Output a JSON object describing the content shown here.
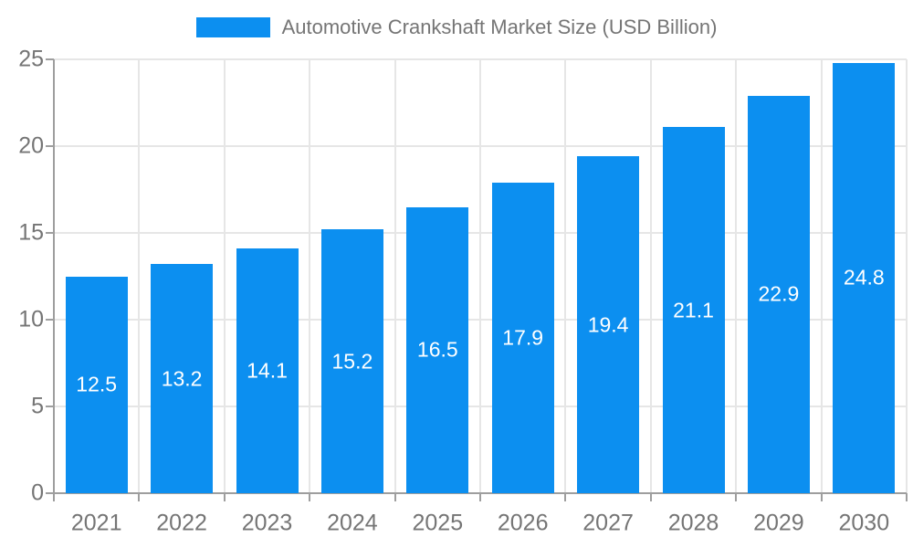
{
  "colors": {
    "bar": "#0C8FF0",
    "value_text": "#FFFFFF",
    "text": "#757575",
    "grid": "#E6E6E6",
    "axis": "#9E9E9E",
    "background": "#FFFFFF"
  },
  "legend": {
    "label": "Automotive Crankshaft Market Size (USD Billion)"
  },
  "chart_data": {
    "type": "bar",
    "title": "Automotive Crankshaft Market Size (USD Billion)",
    "categories": [
      "2021",
      "2022",
      "2023",
      "2024",
      "2025",
      "2026",
      "2027",
      "2028",
      "2029",
      "2030"
    ],
    "values": [
      12.5,
      13.2,
      14.1,
      15.2,
      16.5,
      17.9,
      19.4,
      21.1,
      22.9,
      24.8
    ],
    "value_labels": [
      "12.5",
      "13.2",
      "14.1",
      "15.2",
      "16.5",
      "17.9",
      "19.4",
      "21.1",
      "22.9",
      "24.8"
    ],
    "xlabel": "",
    "ylabel": "",
    "ylim": [
      0,
      25
    ],
    "yticks": [
      0,
      5,
      10,
      15,
      20,
      25
    ],
    "ytick_labels": [
      "0",
      "5",
      "10",
      "15",
      "20",
      "25"
    ],
    "grid": true,
    "legend_position": "top-center",
    "value_label_position": "inside-center"
  }
}
